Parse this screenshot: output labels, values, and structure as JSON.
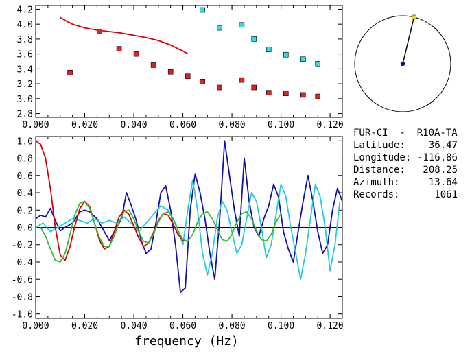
{
  "station": {
    "title": "FUR-CI  -  R10A-TA",
    "fields": [
      {
        "label": "Latitude:",
        "value": "36.47"
      },
      {
        "label": "Longitude:",
        "value": "-116.86"
      },
      {
        "label": "Distance:",
        "value": "208.25"
      },
      {
        "label": "Azimuth:",
        "value": "13.64"
      },
      {
        "label": "Records:",
        "value": "1061"
      }
    ]
  },
  "azimuth_deg": 13.64,
  "chart_data": [
    {
      "type": "scatter",
      "title": "",
      "xlabel": "",
      "ylabel": "",
      "xlim": [
        0.0,
        0.125
      ],
      "ylim": [
        2.75,
        4.25
      ],
      "x_ticks": [
        "0.000",
        "0.020",
        "0.040",
        "0.060",
        "0.080",
        "0.100",
        "0.120"
      ],
      "y_ticks": [
        "2.8",
        "3.0",
        "3.2",
        "3.4",
        "3.6",
        "3.8",
        "4.0",
        "4.2"
      ],
      "series": [
        {
          "type": "line",
          "color": "#dd0000",
          "x": [
            0.01,
            0.012,
            0.015,
            0.02,
            0.025,
            0.03,
            0.035,
            0.04,
            0.045,
            0.05,
            0.055,
            0.058,
            0.06,
            0.062
          ],
          "y": [
            4.09,
            4.05,
            4.0,
            3.95,
            3.92,
            3.9,
            3.88,
            3.85,
            3.82,
            3.78,
            3.72,
            3.67,
            3.64,
            3.6
          ]
        },
        {
          "type": "scatter",
          "color": "#dd2222",
          "x": [
            0.014,
            0.026,
            0.034,
            0.041,
            0.048,
            0.055,
            0.062,
            0.068,
            0.075,
            0.084,
            0.089,
            0.095,
            0.102,
            0.109,
            0.115
          ],
          "y": [
            3.35,
            3.9,
            3.67,
            3.6,
            3.45,
            3.36,
            3.3,
            3.23,
            3.15,
            3.25,
            3.15,
            3.08,
            3.07,
            3.05,
            3.03
          ]
        },
        {
          "type": "scatter",
          "color": "#33dddd",
          "x": [
            0.068,
            0.075,
            0.084,
            0.089,
            0.095,
            0.102,
            0.109,
            0.115
          ],
          "y": [
            4.19,
            3.95,
            3.99,
            3.8,
            3.66,
            3.59,
            3.53,
            3.47
          ]
        }
      ]
    },
    {
      "type": "line",
      "title": "",
      "xlabel": "frequency  (Hz)",
      "ylabel": "",
      "xlim": [
        0.0,
        0.125
      ],
      "ylim": [
        -1.05,
        1.05
      ],
      "x_ticks": [
        "0.000",
        "0.020",
        "0.040",
        "0.060",
        "0.080",
        "0.100",
        "0.120"
      ],
      "y_ticks": [
        "1.0",
        "0.8",
        "0.6",
        "0.4",
        "0.2",
        "0.0",
        "-0.2",
        "-0.4",
        "-0.6",
        "-0.8",
        "-1.0"
      ],
      "zero_line": true,
      "series": [
        {
          "color": "#1111aa",
          "x": [
            0.0,
            0.002,
            0.004,
            0.006,
            0.008,
            0.01,
            0.012,
            0.015,
            0.018,
            0.02,
            0.022,
            0.025,
            0.028,
            0.03,
            0.032,
            0.035,
            0.037,
            0.039,
            0.041,
            0.043,
            0.045,
            0.047,
            0.049,
            0.051,
            0.053,
            0.055,
            0.057,
            0.059,
            0.061,
            0.063,
            0.065,
            0.067,
            0.069,
            0.071,
            0.073,
            0.075,
            0.077,
            0.079,
            0.081,
            0.083,
            0.085,
            0.087,
            0.089,
            0.091,
            0.093,
            0.095,
            0.097,
            0.099,
            0.101,
            0.103,
            0.105,
            0.107,
            0.109,
            0.111,
            0.113,
            0.115,
            0.117,
            0.119,
            0.121,
            0.123,
            0.125
          ],
          "y": [
            0.1,
            0.14,
            0.12,
            0.22,
            0.08,
            -0.04,
            0.0,
            0.05,
            0.18,
            0.2,
            0.18,
            0.1,
            -0.05,
            -0.15,
            -0.05,
            0.1,
            0.4,
            0.25,
            0.08,
            -0.15,
            -0.3,
            -0.25,
            0.05,
            0.4,
            0.48,
            0.2,
            -0.2,
            -0.75,
            -0.7,
            0.2,
            0.62,
            0.4,
            0.1,
            -0.3,
            -0.6,
            0.1,
            1.0,
            0.6,
            0.2,
            -0.1,
            0.8,
            0.3,
            0.0,
            -0.1,
            0.1,
            0.25,
            0.5,
            0.35,
            -0.05,
            -0.25,
            -0.4,
            -0.05,
            0.3,
            0.6,
            0.3,
            -0.05,
            -0.3,
            -0.2,
            0.2,
            0.45,
            0.3
          ]
        },
        {
          "color": "#22ccdd",
          "x": [
            0.0,
            0.003,
            0.006,
            0.009,
            0.012,
            0.015,
            0.018,
            0.021,
            0.024,
            0.027,
            0.03,
            0.033,
            0.036,
            0.039,
            0.042,
            0.045,
            0.048,
            0.051,
            0.054,
            0.057,
            0.06,
            0.062,
            0.064,
            0.066,
            0.068,
            0.07,
            0.072,
            0.074,
            0.076,
            0.078,
            0.08,
            0.082,
            0.084,
            0.086,
            0.088,
            0.09,
            0.092,
            0.094,
            0.096,
            0.098,
            0.1,
            0.102,
            0.104,
            0.106,
            0.108,
            0.11,
            0.112,
            0.114,
            0.116,
            0.118,
            0.12,
            0.122,
            0.124
          ],
          "y": [
            0.0,
            0.05,
            -0.05,
            0.0,
            0.05,
            0.1,
            0.08,
            0.05,
            0.1,
            0.05,
            0.08,
            0.05,
            0.12,
            0.05,
            -0.05,
            0.05,
            0.15,
            0.25,
            0.2,
            0.05,
            -0.2,
            0.2,
            0.55,
            0.2,
            -0.3,
            -0.55,
            -0.3,
            0.1,
            0.3,
            0.2,
            -0.05,
            -0.3,
            -0.2,
            0.1,
            0.4,
            0.3,
            0.0,
            -0.35,
            -0.2,
            0.15,
            0.5,
            0.35,
            0.0,
            -0.3,
            -0.6,
            -0.3,
            0.1,
            0.5,
            0.35,
            0.0,
            -0.5,
            -0.2,
            0.3
          ]
        },
        {
          "color": "#dd0000",
          "x": [
            0.0,
            0.002,
            0.004,
            0.006,
            0.008,
            0.01,
            0.012,
            0.014,
            0.016,
            0.018,
            0.02,
            0.022,
            0.024,
            0.026,
            0.028,
            0.03,
            0.032,
            0.034,
            0.036,
            0.038,
            0.04,
            0.042,
            0.044,
            0.046,
            0.048,
            0.05,
            0.052,
            0.054,
            0.056,
            0.058,
            0.06,
            0.062
          ],
          "y": [
            1.0,
            0.96,
            0.8,
            0.45,
            0.0,
            -0.32,
            -0.38,
            -0.22,
            0.02,
            0.22,
            0.3,
            0.24,
            0.05,
            -0.15,
            -0.25,
            -0.22,
            -0.05,
            0.12,
            0.2,
            0.15,
            0.02,
            -0.12,
            -0.22,
            -0.18,
            -0.06,
            0.08,
            0.16,
            0.14,
            0.04,
            -0.08,
            -0.15,
            -0.16
          ]
        },
        {
          "color": "#33bb33",
          "x": [
            0.002,
            0.004,
            0.006,
            0.008,
            0.01,
            0.012,
            0.014,
            0.016,
            0.018,
            0.02,
            0.022,
            0.024,
            0.026,
            0.028,
            0.03,
            0.032,
            0.034,
            0.036,
            0.038,
            0.04,
            0.042,
            0.044,
            0.046,
            0.048,
            0.05,
            0.052,
            0.054,
            0.056,
            0.058,
            0.06,
            0.062,
            0.064,
            0.066,
            0.068,
            0.07,
            0.072,
            0.074,
            0.076,
            0.078,
            0.08,
            0.082,
            0.084,
            0.086,
            0.088,
            0.09,
            0.092,
            0.094,
            0.096,
            0.098,
            0.1
          ],
          "y": [
            0.0,
            -0.1,
            -0.25,
            -0.38,
            -0.4,
            -0.3,
            -0.08,
            0.15,
            0.28,
            0.3,
            0.22,
            0.05,
            -0.12,
            -0.22,
            -0.22,
            -0.1,
            0.06,
            0.18,
            0.2,
            0.1,
            -0.05,
            -0.16,
            -0.18,
            -0.08,
            0.06,
            0.16,
            0.18,
            0.1,
            -0.04,
            -0.14,
            -0.16,
            -0.08,
            0.06,
            0.16,
            0.18,
            0.1,
            -0.02,
            -0.14,
            -0.16,
            -0.08,
            0.06,
            0.16,
            0.18,
            0.1,
            -0.04,
            -0.14,
            -0.16,
            -0.08,
            0.06,
            0.16
          ]
        }
      ]
    }
  ]
}
